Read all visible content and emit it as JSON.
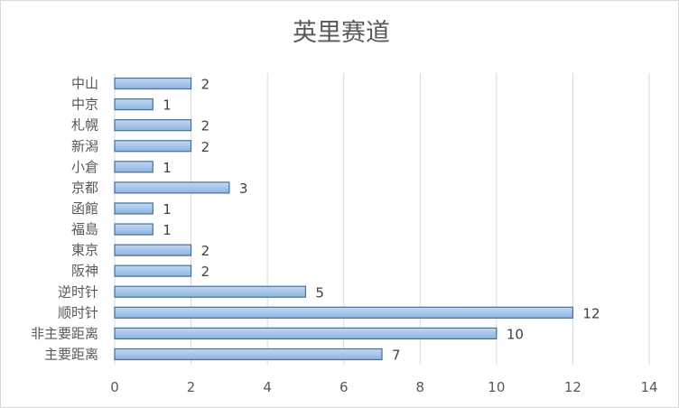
{
  "chart_data": {
    "type": "bar",
    "orientation": "horizontal",
    "title": "英里赛道",
    "categories": [
      "中山",
      "中京",
      "札幌",
      "新潟",
      "小倉",
      "京都",
      "函館",
      "福島",
      "東京",
      "阪神",
      "逆时针",
      "顺时针",
      "非主要距离",
      "主要距离"
    ],
    "values": [
      2,
      1,
      2,
      2,
      1,
      3,
      1,
      1,
      2,
      2,
      5,
      12,
      10,
      7
    ],
    "xlim": [
      0,
      14
    ],
    "xticks": [
      "0",
      "2",
      "4",
      "6",
      "8",
      "10",
      "12",
      "14"
    ],
    "xlabel": "",
    "ylabel": "",
    "grid": "vertical",
    "legend": "none",
    "bar_color_top": "#c5d8f0",
    "bar_color_bottom": "#8db3e2",
    "bar_border": "#41719c",
    "data_labels": true
  }
}
